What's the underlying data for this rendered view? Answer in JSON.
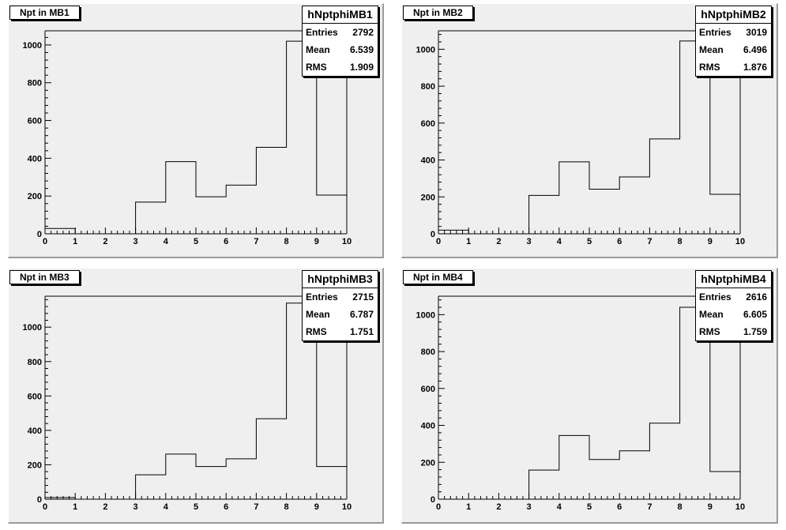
{
  "chart_data": [
    {
      "type": "bar",
      "title": "Npt in MB1",
      "stats": {
        "name": "hNptphiMB1",
        "entries_label": "Entries",
        "entries": "2792",
        "mean_label": "Mean",
        "mean": "6.539",
        "rms_label": "RMS",
        "rms": "1.909"
      },
      "bin_edges": [
        0,
        1,
        2,
        3,
        4,
        5,
        6,
        7,
        8,
        9,
        10
      ],
      "values": [
        28,
        0,
        0,
        168,
        382,
        196,
        258,
        458,
        1020,
        205
      ],
      "xlim": [
        0,
        10
      ],
      "ylim": [
        0,
        1075
      ],
      "xticks": [
        "0",
        "1",
        "2",
        "3",
        "4",
        "5",
        "6",
        "7",
        "8",
        "9",
        "10"
      ],
      "yticks": [
        "0",
        "200",
        "400",
        "600",
        "800",
        "1000"
      ],
      "grid": false
    },
    {
      "type": "bar",
      "title": "Npt in MB2",
      "stats": {
        "name": "hNptphiMB2",
        "entries_label": "Entries",
        "entries": "3019",
        "mean_label": "Mean",
        "mean": "6.496",
        "rms_label": "RMS",
        "rms": "1.876"
      },
      "bin_edges": [
        0,
        1,
        2,
        3,
        4,
        5,
        6,
        7,
        8,
        9,
        10
      ],
      "values": [
        20,
        0,
        0,
        208,
        390,
        242,
        308,
        514,
        1045,
        214
      ],
      "xlim": [
        0,
        10
      ],
      "ylim": [
        0,
        1100
      ],
      "xticks": [
        "0",
        "1",
        "2",
        "3",
        "4",
        "5",
        "6",
        "7",
        "8",
        "9",
        "10"
      ],
      "yticks": [
        "0",
        "200",
        "400",
        "600",
        "800",
        "1000"
      ],
      "grid": false
    },
    {
      "type": "bar",
      "title": "Npt in MB3",
      "stats": {
        "name": "hNptphiMB3",
        "entries_label": "Entries",
        "entries": "2715",
        "mean_label": "Mean",
        "mean": "6.787",
        "rms_label": "RMS",
        "rms": "1.751"
      },
      "bin_edges": [
        0,
        1,
        2,
        3,
        4,
        5,
        6,
        7,
        8,
        9,
        10
      ],
      "values": [
        10,
        0,
        0,
        142,
        262,
        190,
        235,
        468,
        1140,
        190
      ],
      "xlim": [
        0,
        10
      ],
      "ylim": [
        0,
        1180
      ],
      "xticks": [
        "0",
        "1",
        "2",
        "3",
        "4",
        "5",
        "6",
        "7",
        "8",
        "9",
        "10"
      ],
      "yticks": [
        "0",
        "200",
        "400",
        "600",
        "800",
        "1000"
      ],
      "grid": false
    },
    {
      "type": "bar",
      "title": "Npt in MB4",
      "stats": {
        "name": "hNptphiMB4",
        "entries_label": "Entries",
        "entries": "2616",
        "mean_label": "Mean",
        "mean": "6.605",
        "rms_label": "RMS",
        "rms": "1.759"
      },
      "bin_edges": [
        0,
        1,
        2,
        3,
        4,
        5,
        6,
        7,
        8,
        9,
        10
      ],
      "values": [
        0,
        0,
        0,
        158,
        345,
        215,
        262,
        412,
        1040,
        150
      ],
      "xlim": [
        0,
        10
      ],
      "ylim": [
        0,
        1100
      ],
      "xticks": [
        "0",
        "1",
        "2",
        "3",
        "4",
        "5",
        "6",
        "7",
        "8",
        "9",
        "10"
      ],
      "yticks": [
        "0",
        "200",
        "400",
        "600",
        "800",
        "1000"
      ],
      "grid": false
    }
  ]
}
